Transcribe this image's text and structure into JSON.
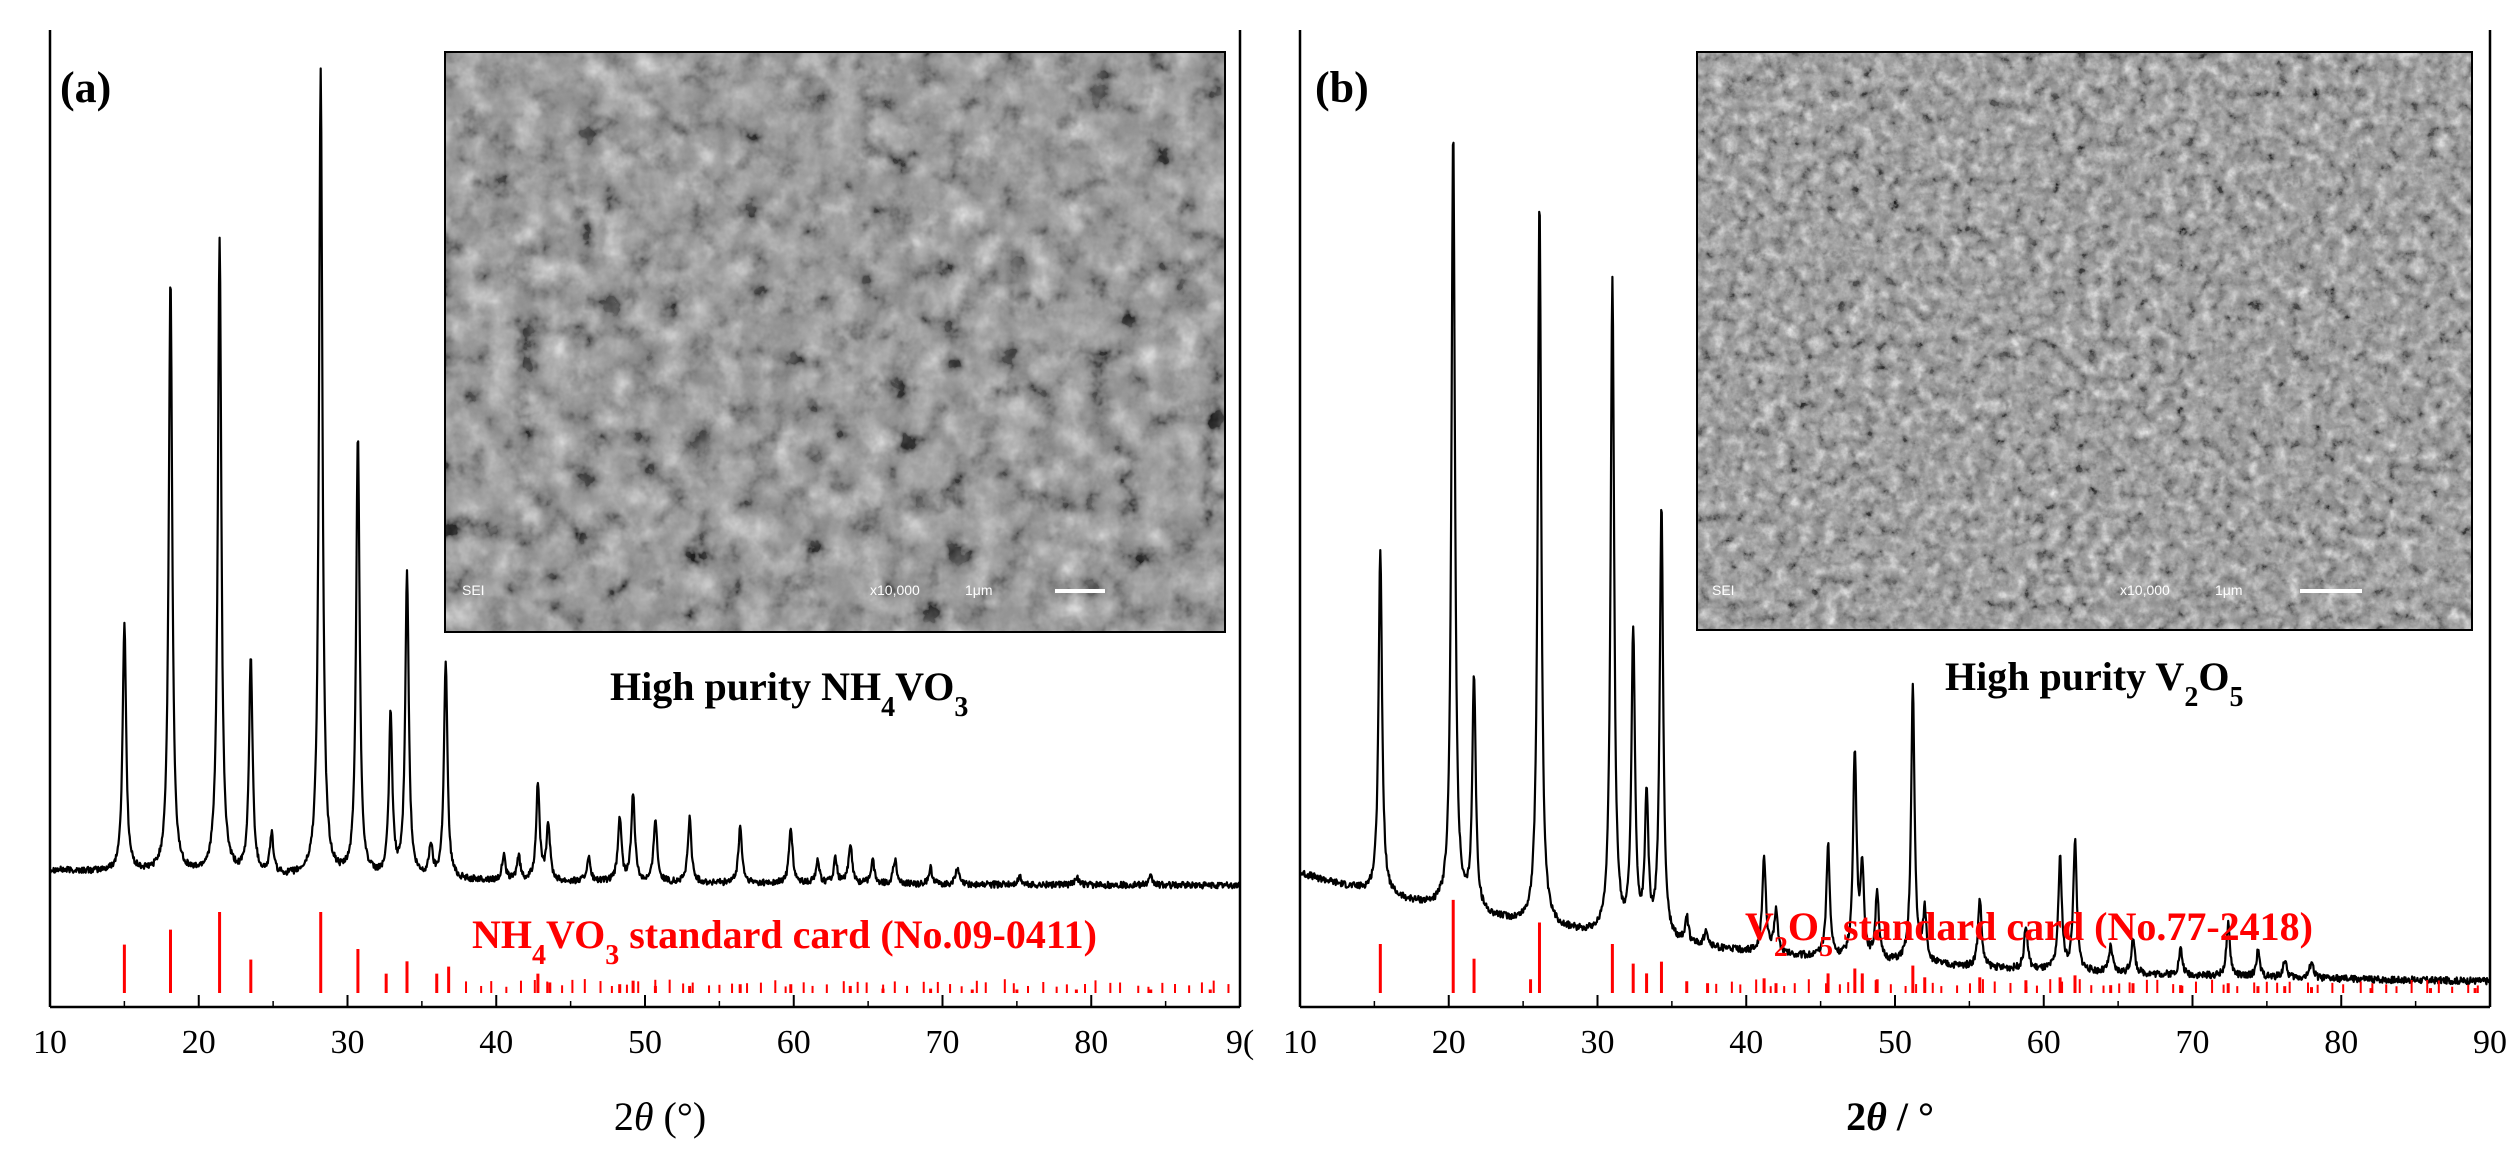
{
  "colors": {
    "pattern": "#000000",
    "reference": "#ff0000",
    "axis": "#000000",
    "sem_base": "#8f8f8f"
  },
  "chart_data": [
    {
      "type": "line",
      "panel_label": "(a)",
      "xlabel_prefix": "2",
      "xlabel_symbol": "θ",
      "xlabel_suffix": " (°)",
      "xlim": [
        10,
        90
      ],
      "xticks": [
        "10",
        "20",
        "30",
        "40",
        "50",
        "60",
        "70",
        "80",
        "9("
      ],
      "inset_caption": {
        "pre": "High purity NH",
        "sub1": "4",
        "mid": "VO",
        "sub2": "3",
        "post": ""
      },
      "sem": {
        "detector": "SEI",
        "magnification": "x10,000",
        "scale": "1μm"
      },
      "series": [
        {
          "role": "measured-xrd",
          "baseline": 0.02,
          "peaks": [
            [
              15.0,
              0.31
            ],
            [
              18.1,
              0.74
            ],
            [
              21.4,
              0.79
            ],
            [
              23.5,
              0.27
            ],
            [
              24.9,
              0.05
            ],
            [
              28.2,
              1.0
            ],
            [
              30.7,
              0.55
            ],
            [
              32.9,
              0.2
            ],
            [
              34.0,
              0.38
            ],
            [
              35.6,
              0.04
            ],
            [
              36.6,
              0.27
            ],
            [
              40.5,
              0.03
            ],
            [
              41.5,
              0.03
            ],
            [
              42.8,
              0.12
            ],
            [
              43.5,
              0.07
            ],
            [
              46.2,
              0.03
            ],
            [
              48.3,
              0.08
            ],
            [
              49.2,
              0.11
            ],
            [
              50.7,
              0.08
            ],
            [
              53.0,
              0.08
            ],
            [
              56.4,
              0.07
            ],
            [
              59.8,
              0.07
            ],
            [
              61.6,
              0.03
            ],
            [
              62.8,
              0.03
            ],
            [
              63.8,
              0.05
            ],
            [
              65.3,
              0.03
            ],
            [
              66.8,
              0.03
            ],
            [
              69.2,
              0.02
            ],
            [
              71.0,
              0.02
            ],
            [
              75.2,
              0.01
            ],
            [
              79.0,
              0.01
            ],
            [
              84.0,
              0.01
            ]
          ]
        },
        {
          "role": "reference",
          "label_pre": "NH",
          "label_sub1": "4",
          "label_mid": "VO",
          "label_sub2": "3",
          "label_post": " standard card (No.09-0411)",
          "sticks": [
            [
              15.0,
              0.55
            ],
            [
              18.1,
              0.72
            ],
            [
              21.4,
              0.92
            ],
            [
              23.5,
              0.38
            ],
            [
              28.2,
              0.92
            ],
            [
              30.7,
              0.5
            ],
            [
              32.6,
              0.22
            ],
            [
              34.0,
              0.36
            ],
            [
              36.0,
              0.22
            ],
            [
              36.8,
              0.3
            ],
            [
              42.8,
              0.22
            ],
            [
              43.6,
              0.12
            ],
            [
              48.3,
              0.1
            ],
            [
              49.2,
              0.14
            ],
            [
              50.7,
              0.08
            ],
            [
              53.0,
              0.08
            ],
            [
              56.4,
              0.1
            ],
            [
              59.8,
              0.1
            ],
            [
              63.8,
              0.08
            ],
            [
              66.0,
              0.05
            ],
            [
              69.2,
              0.05
            ],
            [
              72.0,
              0.04
            ],
            [
              75.0,
              0.04
            ],
            [
              79.0,
              0.04
            ],
            [
              84.0,
              0.04
            ],
            [
              88.0,
              0.04
            ]
          ]
        }
      ]
    },
    {
      "type": "line",
      "panel_label": "(b)",
      "xlabel_prefix": "2",
      "xlabel_symbol": "θ",
      "xlabel_suffix": " / °",
      "xlim": [
        10,
        90
      ],
      "xticks": [
        "10",
        "20",
        "30",
        "40",
        "50",
        "60",
        "70",
        "80",
        "90"
      ],
      "inset_caption": {
        "pre": "High purity V",
        "sub1": "2",
        "mid": "O",
        "sub2": "5",
        "post": ""
      },
      "sem": {
        "detector": "SEI",
        "magnification": "x10,000",
        "scale": "1μm"
      },
      "series": [
        {
          "role": "measured-xrd",
          "baseline": 0.13,
          "peaks": [
            [
              15.4,
              0.4
            ],
            [
              20.3,
              0.9
            ],
            [
              21.7,
              0.27
            ],
            [
              26.1,
              0.84
            ],
            [
              31.0,
              0.76
            ],
            [
              32.4,
              0.35
            ],
            [
              33.3,
              0.16
            ],
            [
              34.3,
              0.5
            ],
            [
              36.0,
              0.03
            ],
            [
              37.3,
              0.02
            ],
            [
              41.2,
              0.11
            ],
            [
              42.0,
              0.05
            ],
            [
              45.5,
              0.13
            ],
            [
              47.3,
              0.24
            ],
            [
              47.8,
              0.1
            ],
            [
              48.8,
              0.08
            ],
            [
              51.2,
              0.32
            ],
            [
              52.0,
              0.06
            ],
            [
              55.7,
              0.08
            ],
            [
              58.8,
              0.05
            ],
            [
              61.1,
              0.13
            ],
            [
              62.1,
              0.15
            ],
            [
              64.5,
              0.03
            ],
            [
              66.0,
              0.04
            ],
            [
              69.2,
              0.03
            ],
            [
              72.4,
              0.06
            ],
            [
              74.4,
              0.03
            ],
            [
              76.2,
              0.02
            ],
            [
              78.0,
              0.02
            ]
          ]
        },
        {
          "role": "reference",
          "label_pre": "V",
          "label_sub1": "2",
          "label_mid": "O",
          "label_sub2": "5",
          "label_post": " standard card (No.77-2418)",
          "sticks": [
            [
              15.4,
              0.5
            ],
            [
              20.3,
              0.95
            ],
            [
              21.7,
              0.35
            ],
            [
              25.5,
              0.14
            ],
            [
              26.1,
              0.72
            ],
            [
              31.0,
              0.5
            ],
            [
              32.4,
              0.3
            ],
            [
              33.3,
              0.2
            ],
            [
              34.3,
              0.32
            ],
            [
              36.0,
              0.12
            ],
            [
              37.4,
              0.1
            ],
            [
              41.2,
              0.15
            ],
            [
              42.0,
              0.1
            ],
            [
              45.5,
              0.2
            ],
            [
              47.3,
              0.25
            ],
            [
              47.8,
              0.2
            ],
            [
              48.8,
              0.14
            ],
            [
              51.2,
              0.28
            ],
            [
              52.0,
              0.16
            ],
            [
              55.7,
              0.16
            ],
            [
              58.8,
              0.13
            ],
            [
              61.1,
              0.16
            ],
            [
              62.1,
              0.18
            ],
            [
              64.5,
              0.08
            ],
            [
              66.0,
              0.1
            ],
            [
              69.2,
              0.08
            ],
            [
              72.4,
              0.1
            ],
            [
              74.4,
              0.07
            ],
            [
              76.2,
              0.07
            ],
            [
              78.0,
              0.06
            ],
            [
              82.0,
              0.05
            ],
            [
              86.0,
              0.05
            ],
            [
              89.0,
              0.05
            ]
          ]
        }
      ]
    }
  ]
}
